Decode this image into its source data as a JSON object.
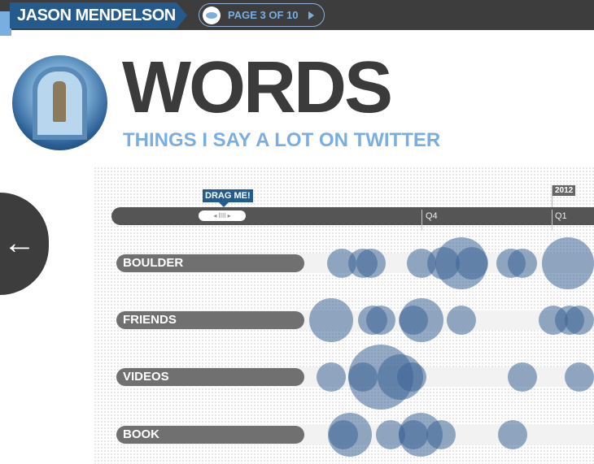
{
  "header": {
    "name": "JASON MENDELSON",
    "page_label": "PAGE 3 OF 10",
    "page_icon": "lips-icon",
    "brand_color": "#245b8c",
    "accent_color": "#7aaee0"
  },
  "hero": {
    "title": "WORDS",
    "subtitle": "THINGS I SAY A LOT ON TWITTER"
  },
  "nav": {
    "back_icon": "arrow-left-icon",
    "back_glyph": "←"
  },
  "timeline": {
    "drag_label": "DRAG ME!",
    "handle_glyph": "◂ IIII ▸",
    "year_flag": "2012",
    "ticks": [
      "Q4",
      "Q1"
    ]
  },
  "words": [
    {
      "label": "BOULDER"
    },
    {
      "label": "FRIENDS"
    },
    {
      "label": "VIDEOS"
    },
    {
      "label": "BOOK"
    }
  ]
}
